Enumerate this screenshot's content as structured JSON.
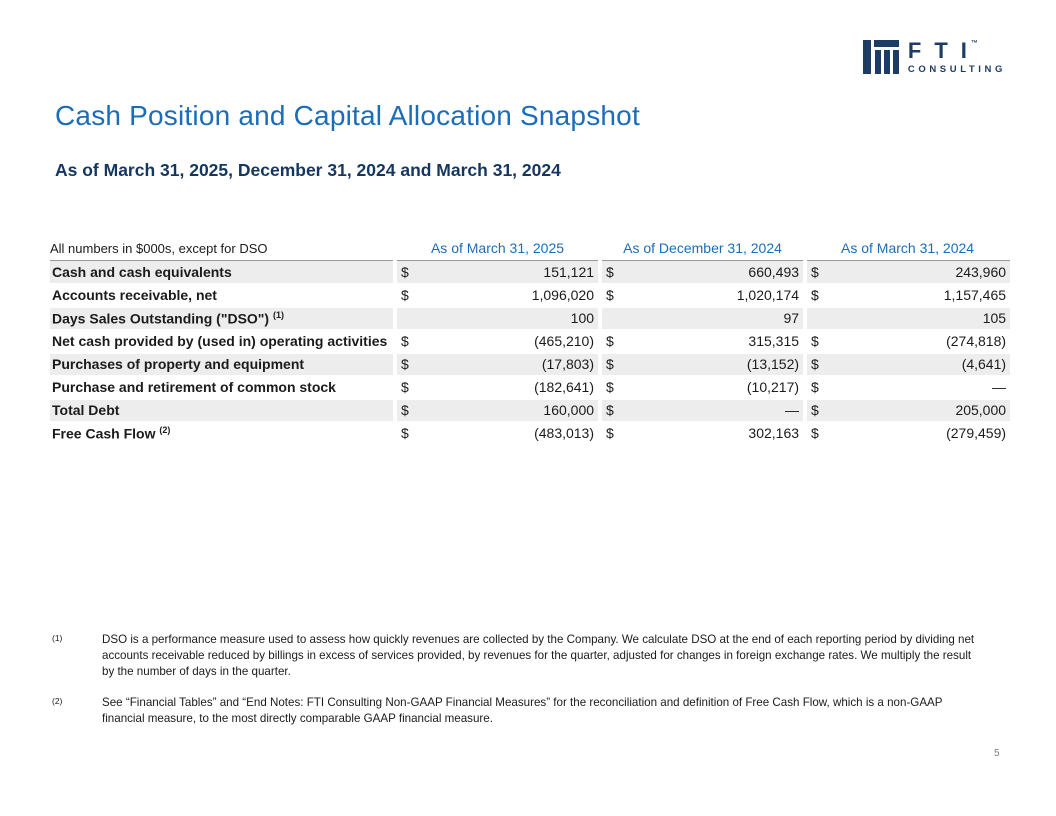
{
  "logo": {
    "brand": "FTI",
    "tm": "™",
    "sub": "CONSULTING"
  },
  "title": "Cash Position and Capital Allocation Snapshot",
  "subtitle": "As of March 31, 2025, December 31, 2024 and March 31, 2024",
  "table": {
    "note": "All numbers in $000s, except for DSO",
    "columns": [
      "As of March 31, 2025",
      "As of December 31, 2024",
      "As of March 31, 2024"
    ],
    "rows": [
      {
        "label": "Cash and cash equivalents",
        "sup": "",
        "dollar": true,
        "values": [
          "151,121",
          "660,493",
          "243,960"
        ]
      },
      {
        "label": "Accounts receivable, net",
        "sup": "",
        "dollar": true,
        "values": [
          "1,096,020",
          "1,020,174",
          "1,157,465"
        ]
      },
      {
        "label": "Days Sales Outstanding (\"DSO\")",
        "sup": "(1)",
        "dollar": false,
        "values": [
          "100",
          "97",
          "105"
        ]
      },
      {
        "label": "Net cash provided by (used in) operating activities",
        "sup": "",
        "dollar": true,
        "values": [
          "(465,210)",
          "315,315",
          "(274,818)"
        ]
      },
      {
        "label": "Purchases of property and equipment",
        "sup": "",
        "dollar": true,
        "values": [
          "(17,803)",
          "(13,152)",
          "(4,641)"
        ]
      },
      {
        "label": "Purchase and retirement of common stock",
        "sup": "",
        "dollar": true,
        "values": [
          "(182,641)",
          "(10,217)",
          "—"
        ]
      },
      {
        "label": "Total Debt",
        "sup": "",
        "dollar": true,
        "values": [
          "160,000",
          "—",
          "205,000"
        ]
      },
      {
        "label": "Free Cash Flow",
        "sup": "(2)",
        "dollar": true,
        "values": [
          "(483,013)",
          "302,163",
          "(279,459)"
        ]
      }
    ]
  },
  "footnotes": [
    {
      "marker": "(1)",
      "text": "DSO is a performance measure used to assess how quickly revenues are collected by the Company. We calculate DSO at the end of each reporting period by dividing net accounts receivable reduced by billings in excess of services provided, by revenues for the quarter, adjusted for changes in foreign exchange rates. We multiply the result by the number of days in the quarter."
    },
    {
      "marker": "(2)",
      "text": "See “Financial Tables” and “End Notes: FTI Consulting Non-GAAP Financial Measures” for the reconciliation and definition of Free Cash Flow, which is a non-GAAP financial measure, to the most directly comparable GAAP financial measure."
    }
  ],
  "page_number": "5",
  "colors": {
    "accent_blue": "#1b6db9",
    "navy": "#1d3c63",
    "row_shade": "#ededed",
    "header_rule": "#9a9a9a",
    "page_num_gray": "#808080"
  }
}
